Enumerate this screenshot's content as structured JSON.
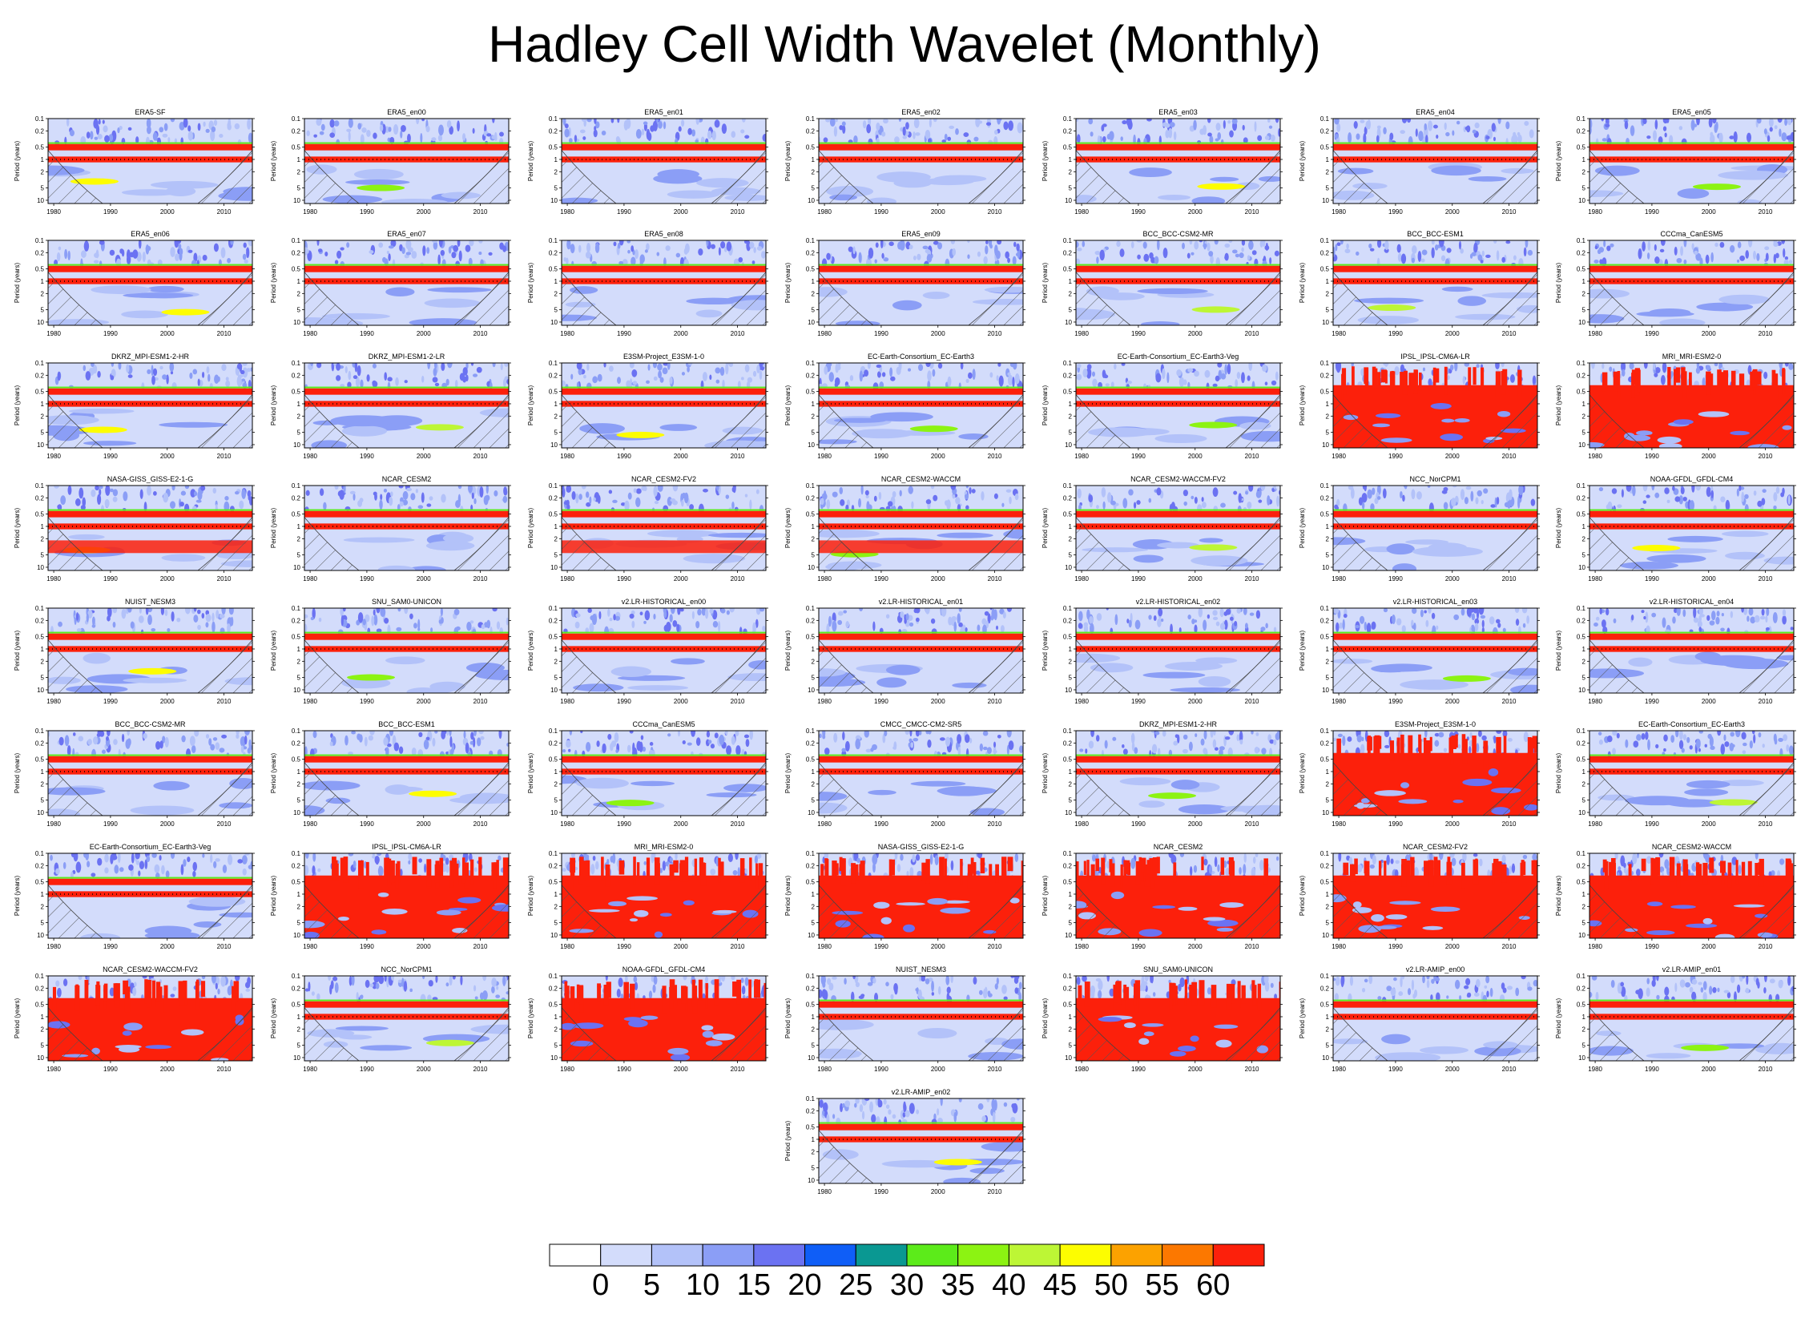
{
  "title": "Hadley Cell Width Wavelet (Monthly)",
  "chart_data": {
    "type": "heatmap",
    "title": "Hadley Cell Width Wavelet (Monthly)",
    "xlabel": "",
    "ylabel": "Period (years)",
    "x_ticks": [
      "1980",
      "1990",
      "2000",
      "2010"
    ],
    "xlim": [
      1979,
      2015
    ],
    "y_ticks": [
      "0.1",
      "0.2",
      "0.5",
      "1",
      "2",
      "5",
      "10"
    ],
    "ylim": [
      0.1,
      12
    ],
    "y_scale": "log",
    "colorbar": {
      "labels": [
        "0",
        "5",
        "10",
        "15",
        "20",
        "25",
        "30",
        "35",
        "40",
        "45",
        "50",
        "55",
        "60"
      ],
      "colors": [
        "#ffffff",
        "#d3dcfb",
        "#b3c2f9",
        "#8b9ef6",
        "#6b72f2",
        "#0f5ef7",
        "#0a9892",
        "#5ceb1a",
        "#8cf312",
        "#bdf635",
        "#fdfd00",
        "#fca200",
        "#fc7800",
        "#fc200b"
      ]
    },
    "panels": [
      {
        "name": "ERA5-SF",
        "intensity": 0
      },
      {
        "name": "ERA5_en00",
        "intensity": 0
      },
      {
        "name": "ERA5_en01",
        "intensity": 0
      },
      {
        "name": "ERA5_en02",
        "intensity": 0
      },
      {
        "name": "ERA5_en03",
        "intensity": 0
      },
      {
        "name": "ERA5_en04",
        "intensity": 0
      },
      {
        "name": "ERA5_en05",
        "intensity": 0
      },
      {
        "name": "ERA5_en06",
        "intensity": 0
      },
      {
        "name": "ERA5_en07",
        "intensity": 0
      },
      {
        "name": "ERA5_en08",
        "intensity": 0
      },
      {
        "name": "ERA5_en09",
        "intensity": 0
      },
      {
        "name": "BCC_BCC-CSM2-MR",
        "intensity": 0
      },
      {
        "name": "BCC_BCC-ESM1",
        "intensity": 0
      },
      {
        "name": "CCCma_CanESM5",
        "intensity": 0
      },
      {
        "name": "DKRZ_MPI-ESM1-2-HR",
        "intensity": 0
      },
      {
        "name": "DKRZ_MPI-ESM1-2-LR",
        "intensity": 0
      },
      {
        "name": "E3SM-Project_E3SM-1-0",
        "intensity": 0
      },
      {
        "name": "EC-Earth-Consortium_EC-Earth3",
        "intensity": 0
      },
      {
        "name": "EC-Earth-Consortium_EC-Earth3-Veg",
        "intensity": 0
      },
      {
        "name": "IPSL_IPSL-CM6A-LR",
        "intensity": 2
      },
      {
        "name": "MRI_MRI-ESM2-0",
        "intensity": 2
      },
      {
        "name": "NASA-GISS_GISS-E2-1-G",
        "intensity": 1
      },
      {
        "name": "NCAR_CESM2",
        "intensity": 0
      },
      {
        "name": "NCAR_CESM2-FV2",
        "intensity": 1
      },
      {
        "name": "NCAR_CESM2-WACCM",
        "intensity": 1
      },
      {
        "name": "NCAR_CESM2-WACCM-FV2",
        "intensity": 0
      },
      {
        "name": "NCC_NorCPM1",
        "intensity": 0
      },
      {
        "name": "NOAA-GFDL_GFDL-CM4",
        "intensity": 0
      },
      {
        "name": "NUIST_NESM3",
        "intensity": 0
      },
      {
        "name": "SNU_SAM0-UNICON",
        "intensity": 0
      },
      {
        "name": "v2.LR-HISTORICAL_en00",
        "intensity": 0
      },
      {
        "name": "v2.LR-HISTORICAL_en01",
        "intensity": 0
      },
      {
        "name": "v2.LR-HISTORICAL_en02",
        "intensity": 0
      },
      {
        "name": "v2.LR-HISTORICAL_en03",
        "intensity": 0
      },
      {
        "name": "v2.LR-HISTORICAL_en04",
        "intensity": 0
      },
      {
        "name": "BCC_BCC-CSM2-MR",
        "intensity": 0
      },
      {
        "name": "BCC_BCC-ESM1",
        "intensity": 0
      },
      {
        "name": "CCCma_CanESM5",
        "intensity": 0
      },
      {
        "name": "CMCC_CMCC-CM2-SR5",
        "intensity": 0
      },
      {
        "name": "DKRZ_MPI-ESM1-2-HR",
        "intensity": 0
      },
      {
        "name": "E3SM-Project_E3SM-1-0",
        "intensity": 2
      },
      {
        "name": "EC-Earth-Consortium_EC-Earth3",
        "intensity": 0
      },
      {
        "name": "EC-Earth-Consortium_EC-Earth3-Veg",
        "intensity": 0
      },
      {
        "name": "IPSL_IPSL-CM6A-LR",
        "intensity": 2
      },
      {
        "name": "MRI_MRI-ESM2-0",
        "intensity": 2
      },
      {
        "name": "NASA-GISS_GISS-E2-1-G",
        "intensity": 2
      },
      {
        "name": "NCAR_CESM2",
        "intensity": 2
      },
      {
        "name": "NCAR_CESM2-FV2",
        "intensity": 2
      },
      {
        "name": "NCAR_CESM2-WACCM",
        "intensity": 2
      },
      {
        "name": "NCAR_CESM2-WACCM-FV2",
        "intensity": 2
      },
      {
        "name": "NCC_NorCPM1",
        "intensity": 0
      },
      {
        "name": "NOAA-GFDL_GFDL-CM4",
        "intensity": 2
      },
      {
        "name": "NUIST_NESM3",
        "intensity": 0
      },
      {
        "name": "SNU_SAM0-UNICON",
        "intensity": 2
      },
      {
        "name": "v2.LR-AMIP_en00",
        "intensity": 0
      },
      {
        "name": "v2.LR-AMIP_en01",
        "intensity": 0
      },
      {
        "name": "v2.LR-AMIP_en02",
        "intensity": 0
      }
    ]
  }
}
